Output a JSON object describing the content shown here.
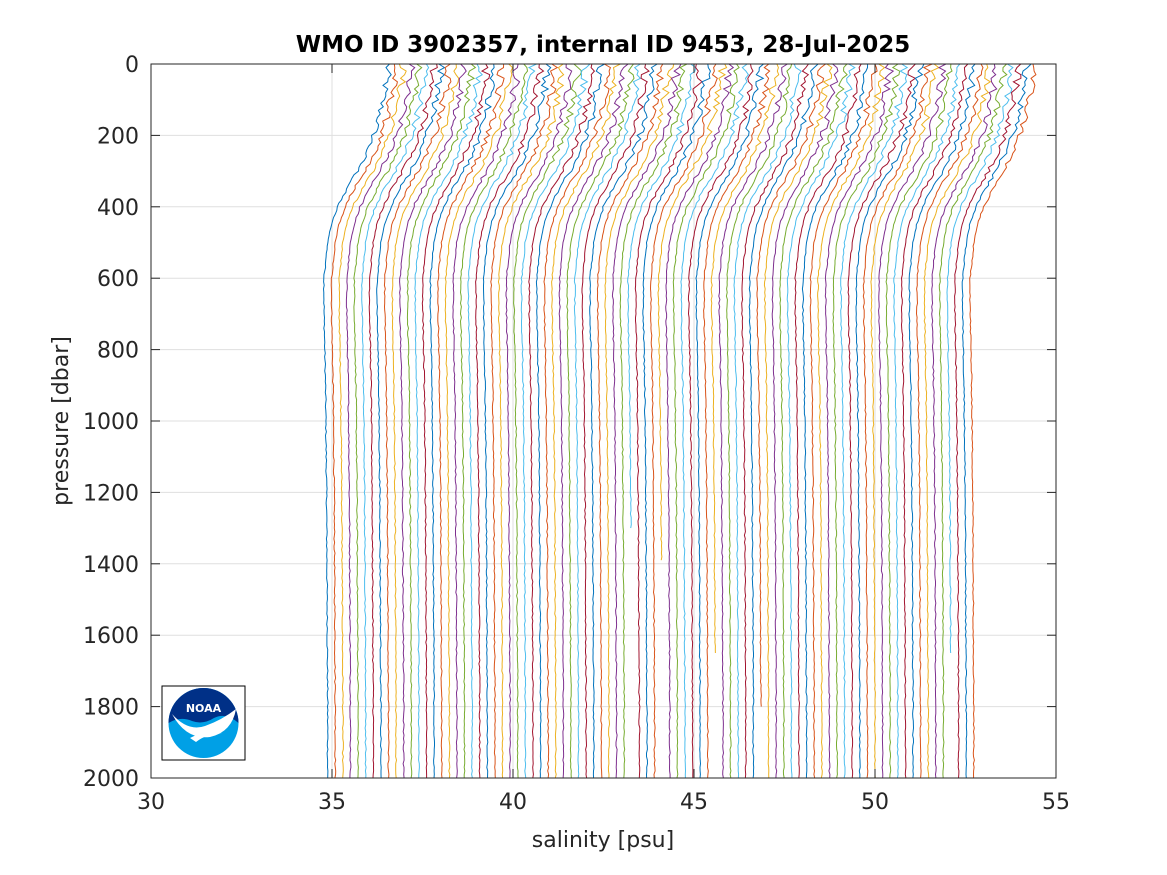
{
  "chart_data": {
    "type": "line",
    "title": "WMO ID 3902357, internal ID 9453, 28-Jul-2025",
    "xlabel": "salinity [psu]",
    "ylabel": "pressure [dbar]",
    "xlim": [
      30,
      55
    ],
    "ylim": [
      0,
      2000
    ],
    "y_reversed": true,
    "grid": true,
    "x_ticks": [
      "30",
      "35",
      "40",
      "45",
      "50",
      "55"
    ],
    "y_ticks": [
      "0",
      "200",
      "400",
      "600",
      "800",
      "1000",
      "1200",
      "1400",
      "1600",
      "1800",
      "2000"
    ],
    "description_of_series": "Stacked (offset) salinity profiles, each successive profile shifted to higher salinity",
    "profile_count": 86,
    "offset_start_deep": 34.8,
    "offset_step": 0.21,
    "colors": [
      "#0072bd",
      "#d95319",
      "#edb120",
      "#7e2f8e",
      "#77ac30",
      "#4dbeee",
      "#a2142f"
    ],
    "profile_shape_pressure": [
      0,
      50,
      100,
      150,
      200,
      250,
      300,
      350,
      400,
      450,
      500,
      600,
      700,
      800,
      900,
      1000,
      1200,
      1400,
      1600,
      1800,
      2000
    ],
    "profile_shape_offset": [
      1.75,
      1.7,
      1.6,
      1.5,
      1.35,
      1.15,
      0.9,
      0.6,
      0.35,
      0.18,
      0.08,
      -0.02,
      -0.02,
      0.0,
      0.02,
      0.03,
      0.05,
      0.06,
      0.07,
      0.08,
      0.08
    ],
    "profile_end_pressures": {
      "40": 1300,
      "44": 1390,
      "51": 1650,
      "57": 1800,
      "93": 1250,
      "96": 1500,
      "82": 1650
    },
    "logo": "noaa-logo"
  }
}
